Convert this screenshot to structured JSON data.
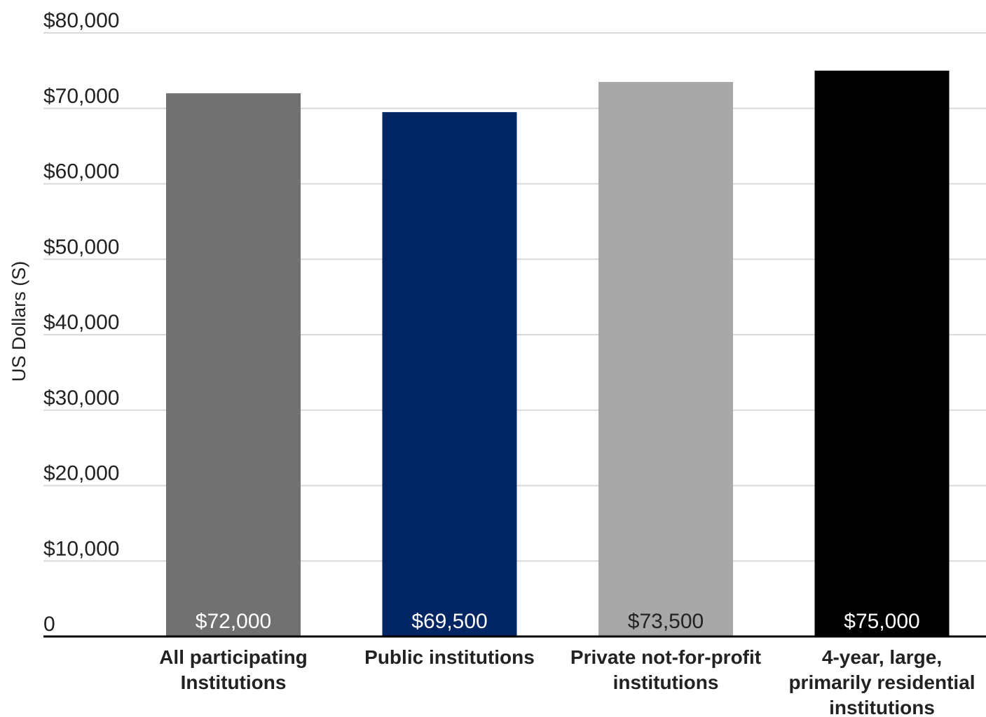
{
  "chart_data": {
    "type": "bar",
    "title": "",
    "xlabel": "",
    "ylabel": "US Dollars (S)",
    "ylim": [
      0,
      80000
    ],
    "yticks": [
      0,
      10000,
      20000,
      30000,
      40000,
      50000,
      60000,
      70000,
      80000
    ],
    "ytick_labels": [
      "0",
      "$10,000",
      "$20,000",
      "$30,000",
      "$40,000",
      "$50,000",
      "$60,000",
      "$70,000",
      "$80,000"
    ],
    "grid": true,
    "legend": "none",
    "categories": [
      [
        "All participating",
        "Institutions"
      ],
      [
        "Public institutions"
      ],
      [
        "Private not-for-profit",
        "institutions"
      ],
      [
        "4-year, large,",
        "primarily residential",
        "institutions"
      ]
    ],
    "values": [
      72000,
      69500,
      73500,
      75000
    ],
    "data_labels": [
      "$72,000",
      "$69,500",
      "$73,500",
      "$75,000"
    ],
    "bar_colors": [
      "#717171",
      "#022563",
      "#a8a8a8",
      "#000000"
    ],
    "data_label_colors": [
      "#ffffff",
      "#ffffff",
      "#222222",
      "#ffffff"
    ],
    "grid_color": "#d9d9d9",
    "axis_color": "#000000"
  }
}
